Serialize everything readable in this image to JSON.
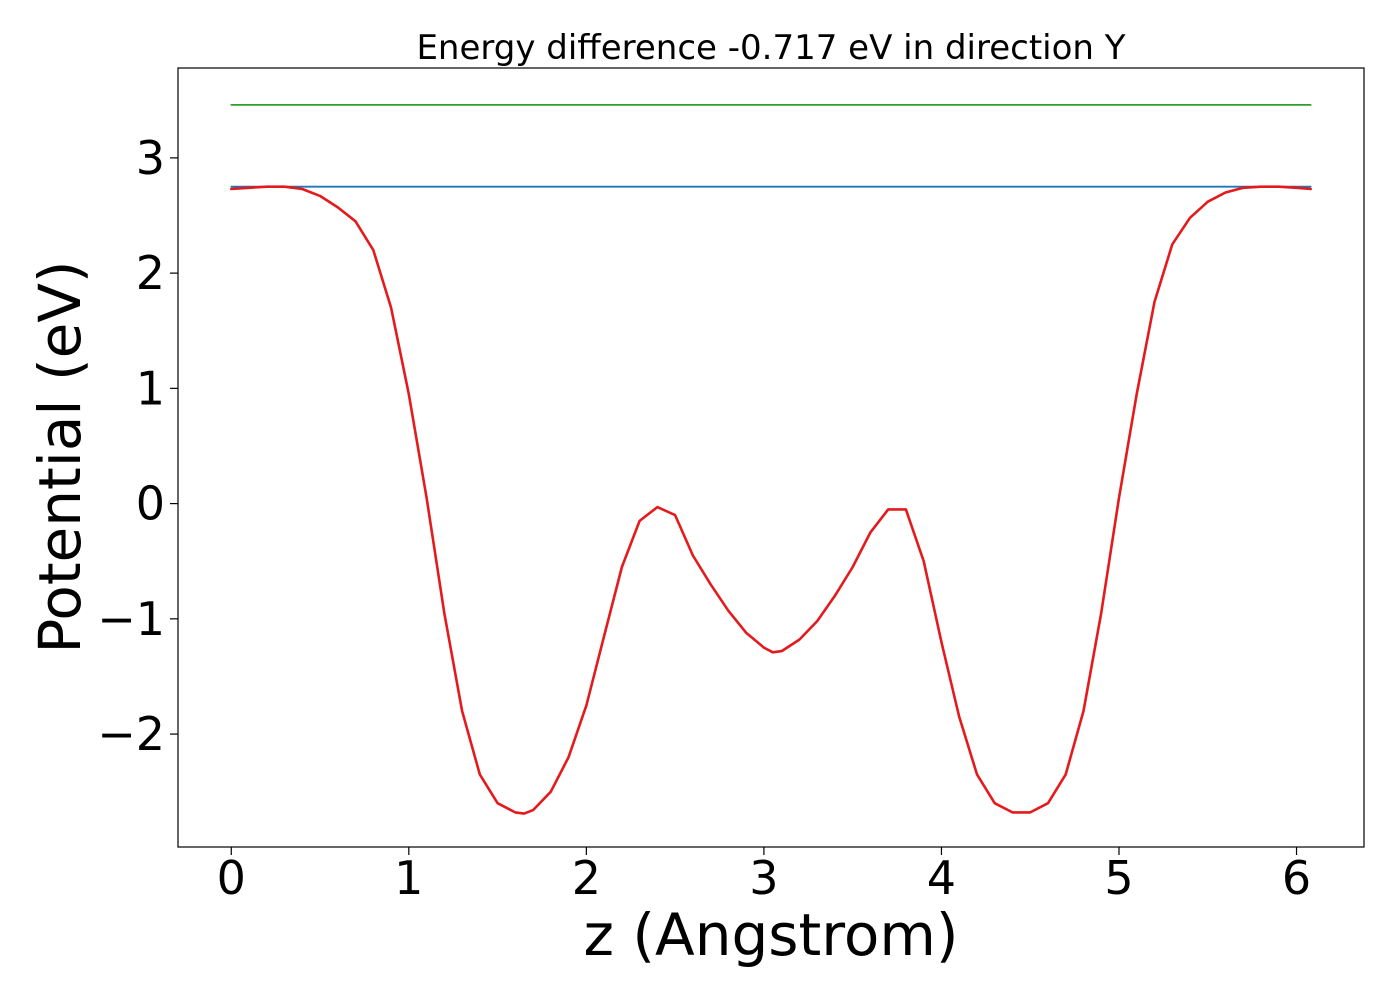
{
  "chart_data": {
    "type": "line",
    "title": "Energy difference -0.717 eV in direction Y",
    "xlabel": "z (Angstrom)",
    "ylabel": "Potential (eV)",
    "xlim": [
      -0.3,
      6.38
    ],
    "ylim": [
      -2.98,
      3.78
    ],
    "x_ticks": [
      0,
      1,
      2,
      3,
      4,
      5,
      6
    ],
    "x_tick_labels": [
      "0",
      "1",
      "2",
      "3",
      "4",
      "5",
      "6"
    ],
    "y_ticks": [
      -2,
      -1,
      0,
      1,
      2,
      3
    ],
    "y_tick_labels": [
      "−2",
      "−1",
      "0",
      "1",
      "2",
      "3"
    ],
    "grid": false,
    "legend": "none",
    "series": [
      {
        "color": "#2ca02c",
        "x": [
          0,
          6.08
        ],
        "y": [
          3.46,
          3.46
        ]
      },
      {
        "color": "#1f77b4",
        "x": [
          0,
          6.08
        ],
        "y": [
          2.75,
          2.75
        ]
      },
      {
        "color": "#e41a1c",
        "x": [
          0,
          0.1,
          0.2,
          0.3,
          0.4,
          0.5,
          0.6,
          0.7,
          0.8,
          0.9,
          1.0,
          1.1,
          1.2,
          1.3,
          1.4,
          1.5,
          1.6,
          1.65,
          1.7,
          1.8,
          1.9,
          2.0,
          2.1,
          2.2,
          2.3,
          2.4,
          2.5,
          2.6,
          2.7,
          2.8,
          2.9,
          3.0,
          3.05,
          3.1,
          3.2,
          3.3,
          3.4,
          3.5,
          3.6,
          3.7,
          3.8,
          3.9,
          4.0,
          4.1,
          4.2,
          4.3,
          4.4,
          4.5,
          4.6,
          4.7,
          4.8,
          4.9,
          5.0,
          5.1,
          5.2,
          5.3,
          5.4,
          5.5,
          5.6,
          5.7,
          5.8,
          5.9,
          6.0,
          6.08
        ],
        "y": [
          2.73,
          2.74,
          2.75,
          2.75,
          2.73,
          2.67,
          2.57,
          2.45,
          2.2,
          1.7,
          0.95,
          0.05,
          -0.95,
          -1.8,
          -2.35,
          -2.6,
          -2.68,
          -2.69,
          -2.66,
          -2.5,
          -2.2,
          -1.75,
          -1.15,
          -0.55,
          -0.15,
          -0.03,
          -0.1,
          -0.45,
          -0.7,
          -0.93,
          -1.12,
          -1.25,
          -1.29,
          -1.28,
          -1.18,
          -1.02,
          -0.8,
          -0.55,
          -0.25,
          -0.05,
          -0.05,
          -0.5,
          -1.2,
          -1.85,
          -2.35,
          -2.6,
          -2.68,
          -2.68,
          -2.6,
          -2.35,
          -1.8,
          -0.95,
          0.05,
          0.95,
          1.75,
          2.25,
          2.48,
          2.62,
          2.7,
          2.74,
          2.75,
          2.75,
          2.74,
          2.73
        ]
      }
    ]
  }
}
